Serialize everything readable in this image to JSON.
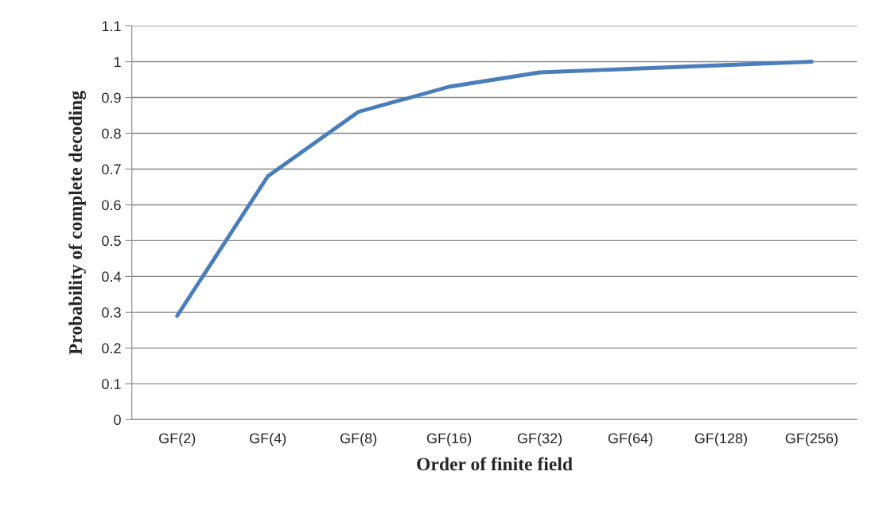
{
  "chart_data": {
    "type": "line",
    "xlabel": "Order of finite field",
    "ylabel": "Probability of complete decoding",
    "categories": [
      "GF(2)",
      "GF(4)",
      "GF(8)",
      "GF(16)",
      "GF(32)",
      "GF(64)",
      "GF(128)",
      "GF(256)"
    ],
    "series": [
      {
        "color": "#4a7ebb",
        "values": [
          0.29,
          0.68,
          0.86,
          0.93,
          0.97,
          0.98,
          0.99,
          1.0
        ]
      }
    ],
    "ylim": [
      0,
      1.1
    ],
    "yticks": [
      0,
      0.1,
      0.2,
      0.3,
      0.4,
      0.5,
      0.6,
      0.7,
      0.8,
      0.9,
      1,
      1.1
    ],
    "grid": "y",
    "marker": "none",
    "line_style": "solid"
  }
}
